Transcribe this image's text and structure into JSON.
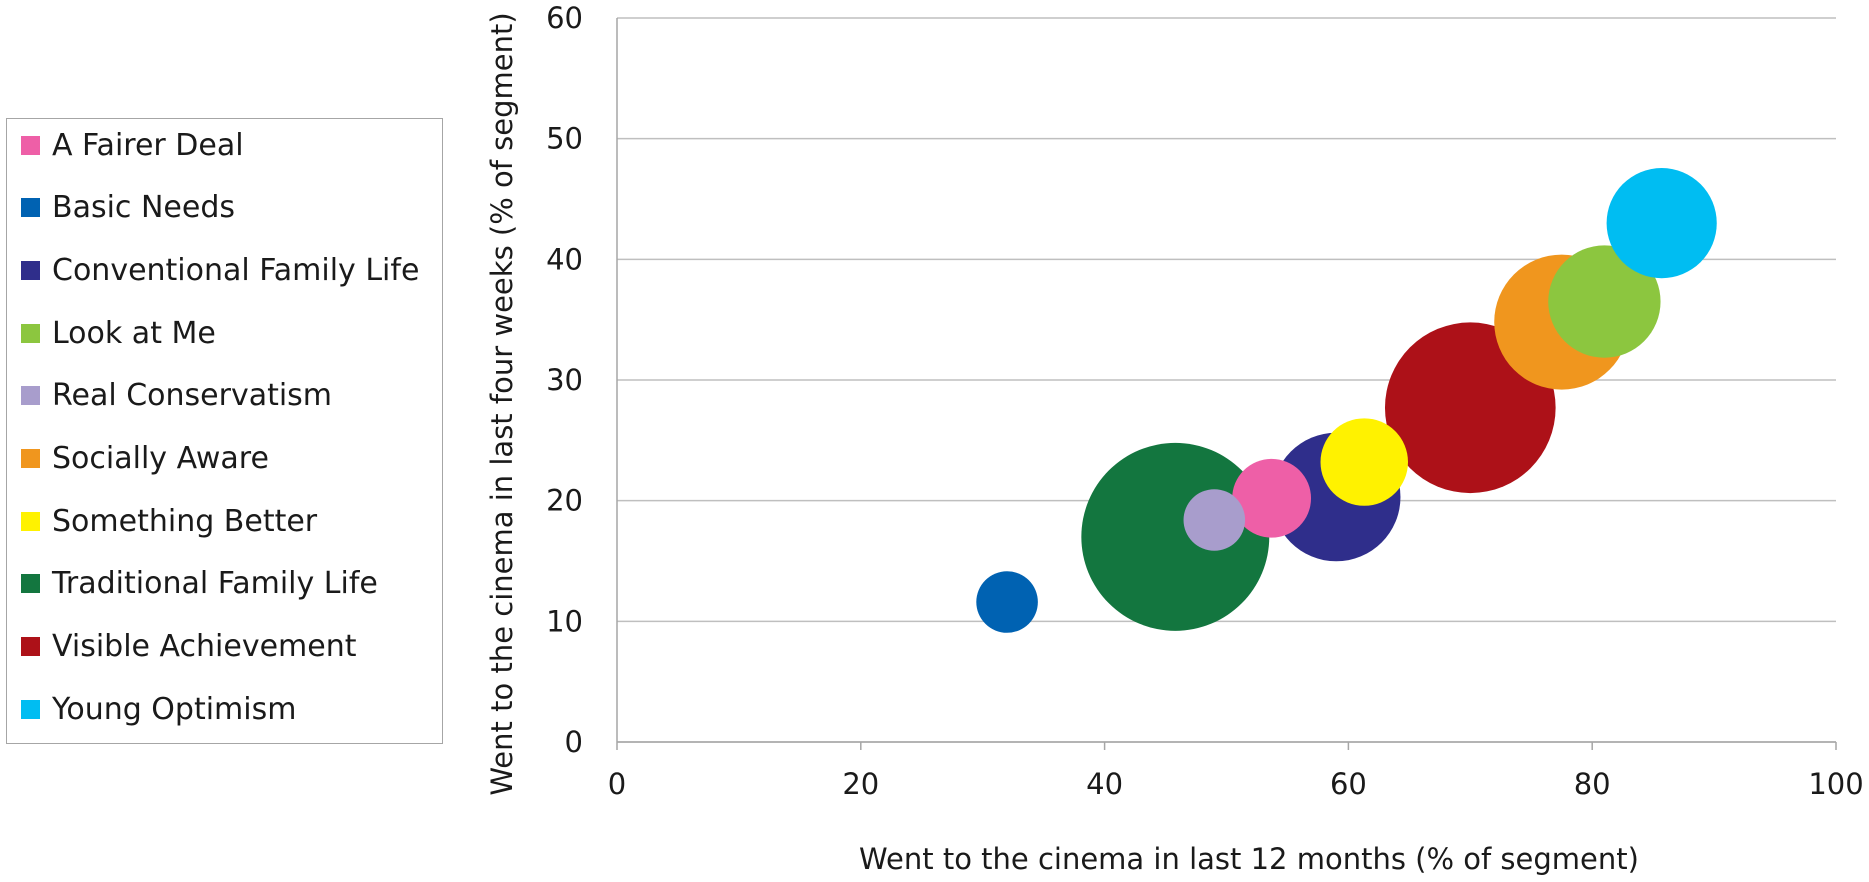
{
  "chart_data": {
    "type": "scatter",
    "title": "",
    "xlabel": "Went to the cinema in last 12 months (% of segment)",
    "ylabel": "Went to the cinema in last four weeks (% of segment)",
    "xlim": [
      0,
      100
    ],
    "ylim": [
      0,
      60
    ],
    "x_ticks": [
      "0",
      "20",
      "40",
      "60",
      "80",
      "100"
    ],
    "y_ticks": [
      "0",
      "10",
      "20",
      "30",
      "40",
      "50",
      "60"
    ],
    "grid": "horizontal",
    "legend_position": "left",
    "series": [
      {
        "name": "A Fairer Deal",
        "color": "#ee5fa7",
        "x": 53.7,
        "y": 20.2,
        "relative_size": 0.73
      },
      {
        "name": "Basic Needs",
        "color": "#0062b2",
        "x": 32.0,
        "y": 11.6,
        "relative_size": 0.57
      },
      {
        "name": "Conventional Family Life",
        "color": "#2f2e8b",
        "x": 59.0,
        "y": 20.3,
        "relative_size": 1.19
      },
      {
        "name": "Look at Me",
        "color": "#8cc63f",
        "x": 81.0,
        "y": 36.5,
        "relative_size": 1.04
      },
      {
        "name": "Real Conservatism",
        "color": "#a89dcc",
        "x": 49.0,
        "y": 18.4,
        "relative_size": 0.57
      },
      {
        "name": "Socially Aware",
        "color": "#f0961e",
        "x": 77.5,
        "y": 34.8,
        "relative_size": 1.25
      },
      {
        "name": "Something Better",
        "color": "#fff200",
        "x": 61.3,
        "y": 23.2,
        "relative_size": 0.81
      },
      {
        "name": "Traditional Family Life",
        "color": "#13763f",
        "x": 45.8,
        "y": 17.0,
        "relative_size": 1.74
      },
      {
        "name": "Visible Achievement",
        "color": "#ad1118",
        "x": 70.0,
        "y": 27.7,
        "relative_size": 1.58
      },
      {
        "name": "Young Optimism",
        "color": "#00bdf2",
        "x": 85.7,
        "y": 43.0,
        "relative_size": 1.02
      }
    ],
    "draw_order": [
      7,
      1,
      2,
      0,
      4,
      8,
      5,
      3,
      9,
      6
    ]
  }
}
